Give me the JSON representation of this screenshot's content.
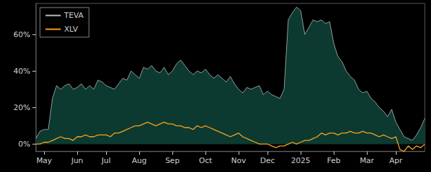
{
  "chart_data": {
    "type": "line",
    "categories": [
      null,
      null,
      "May",
      null,
      null,
      null,
      null,
      null,
      null,
      null,
      "Jun",
      null,
      null,
      null,
      null,
      null,
      null,
      "Jul",
      null,
      null,
      null,
      null,
      null,
      null,
      null,
      "Aug",
      null,
      null,
      null,
      null,
      null,
      null,
      null,
      "Sep",
      null,
      null,
      null,
      null,
      null,
      null,
      null,
      "Oct",
      null,
      null,
      null,
      null,
      null,
      null,
      null,
      "Nov",
      null,
      null,
      null,
      null,
      null,
      null,
      "Dec",
      null,
      null,
      null,
      null,
      null,
      null,
      null,
      "2025",
      null,
      null,
      null,
      null,
      null,
      null,
      null,
      "Feb",
      null,
      null,
      null,
      null,
      null,
      null,
      null,
      "Mar",
      null,
      null,
      null,
      null,
      null,
      null,
      "Apr",
      null,
      null,
      null,
      null,
      null,
      null,
      null
    ],
    "series": [
      {
        "name": "TEVA",
        "type": "area",
        "color": "#b9c2bf",
        "values": [
          3,
          7,
          8,
          8,
          25,
          32,
          30,
          32,
          33,
          30,
          31,
          33,
          30,
          32,
          30,
          35,
          34,
          32,
          31,
          30,
          33,
          36,
          35,
          40,
          38,
          36,
          42,
          41,
          43,
          40,
          39,
          42,
          38,
          40,
          44,
          46,
          43,
          40,
          38,
          40,
          39,
          41,
          38,
          36,
          38,
          36,
          34,
          37,
          33,
          30,
          28,
          31,
          30,
          31,
          32,
          27,
          29,
          27,
          26,
          25,
          30,
          68,
          72,
          75,
          73,
          60,
          64,
          68,
          67,
          68,
          66,
          67,
          55,
          48,
          45,
          40,
          37,
          35,
          30,
          28,
          29,
          25,
          23,
          20,
          18,
          15,
          19,
          12,
          8,
          4,
          3,
          2,
          5,
          9,
          14
        ]
      },
      {
        "name": "XLV",
        "type": "line",
        "color": "#ffa31a",
        "values": [
          0,
          0,
          1,
          1,
          2,
          3,
          4,
          3,
          3,
          2,
          4,
          4,
          5,
          4,
          4,
          5,
          5,
          5,
          4,
          6,
          6,
          7,
          8,
          9,
          10,
          10,
          11,
          12,
          11,
          10,
          11,
          12,
          11,
          11,
          10,
          10,
          9,
          9,
          8,
          10,
          9,
          10,
          9,
          8,
          7,
          6,
          5,
          4,
          5,
          6,
          4,
          3,
          2,
          1,
          0,
          0,
          0,
          -1,
          -2,
          -1,
          -1,
          0,
          1,
          0,
          1,
          2,
          2,
          3,
          4,
          6,
          5,
          6,
          6,
          5,
          6,
          6,
          7,
          6,
          6,
          7,
          6,
          6,
          5,
          4,
          5,
          4,
          3,
          4,
          -3,
          -4,
          -1,
          -3,
          -1,
          -2,
          0
        ]
      }
    ],
    "ylim": [
      -4,
      77
    ],
    "yticks": [
      {
        "value": 0,
        "label": "0%"
      },
      {
        "value": 20,
        "label": "20%"
      },
      {
        "value": 40,
        "label": "40%"
      },
      {
        "value": 60,
        "label": "60%"
      }
    ],
    "grid": false,
    "legend": "upper left"
  }
}
